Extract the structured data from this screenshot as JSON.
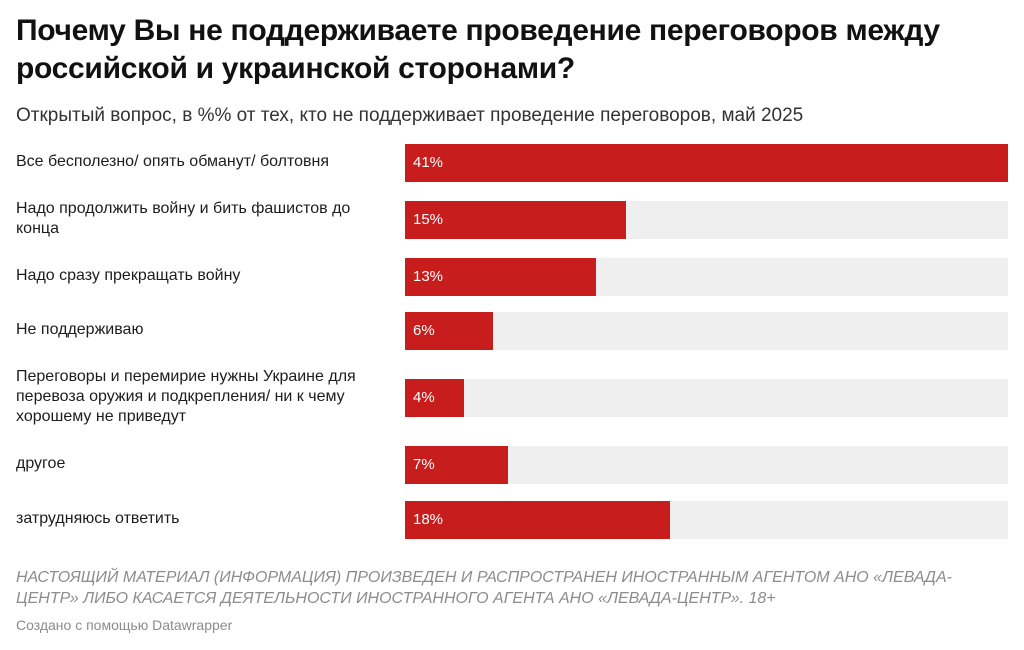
{
  "chart_data": {
    "type": "bar",
    "orientation": "horizontal",
    "title": "Почему Вы не поддерживаете проведение переговоров между российской и украинской сторонами?",
    "subtitle": "Открытый вопрос, в %% от тех, кто не поддерживает проведение переговоров, май 2025",
    "categories": [
      "Все бесполезно/ опять обманут/ болтовня",
      "Надо продолжить войну и бить фашистов до конца",
      "Надо сразу прекращать войну",
      "Не поддерживаю",
      "Переговоры и перемирие нужны Украине для перевоза оружия и подкрепления/ ни к чему хорошему не приведут",
      "другое",
      "затрудняюсь ответить"
    ],
    "values": [
      41,
      15,
      13,
      6,
      4,
      7,
      18
    ],
    "value_labels": [
      "41%",
      "15%",
      "13%",
      "6%",
      "4%",
      "7%",
      "18%"
    ],
    "xlim": [
      0,
      41
    ],
    "grid": false,
    "bar_color": "#c71e1d",
    "track_color": "#efefef",
    "notes": "НАСТОЯЩИЙ МАТЕРИАЛ (ИНФОРМАЦИЯ) ПРОИЗВЕДЕН И РАСПРОСТРАНЕН ИНОСТРАННЫМ АГЕНТОМ АНО «ЛЕВАДА-ЦЕНТР» ЛИБО КАСАЕТСЯ ДЕЯТЕЛЬНОСТИ ИНОСТРАННОГО АГЕНТА АНО «ЛЕВАДА-ЦЕНТР». 18+",
    "credit": "Создано с помощью Datawrapper"
  }
}
